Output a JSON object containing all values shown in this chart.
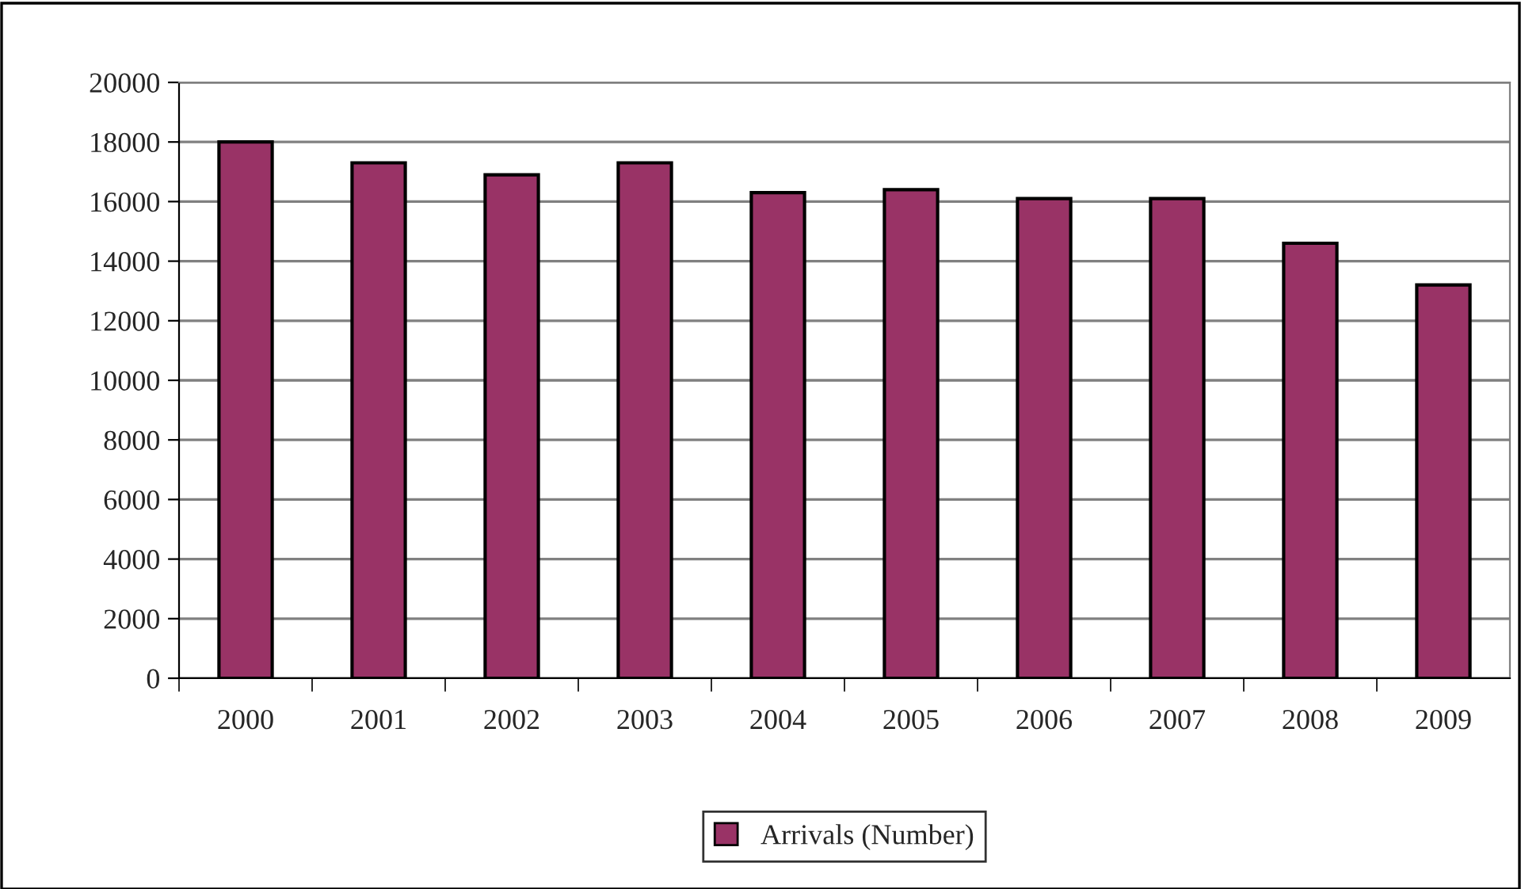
{
  "chart_data": {
    "type": "bar",
    "categories": [
      "2000",
      "2001",
      "2002",
      "2003",
      "2004",
      "2005",
      "2006",
      "2007",
      "2008",
      "2009"
    ],
    "series": [
      {
        "name": "Arrivals (Number)",
        "color": "#993366",
        "values": [
          18000,
          17300,
          16900,
          17300,
          16300,
          16400,
          16100,
          16100,
          14600,
          13200
        ]
      }
    ],
    "ylim": [
      0,
      20000
    ],
    "yticks": [
      0,
      2000,
      4000,
      6000,
      8000,
      10000,
      12000,
      14000,
      16000,
      18000,
      20000
    ],
    "grid": "y",
    "legend": "bottom"
  }
}
